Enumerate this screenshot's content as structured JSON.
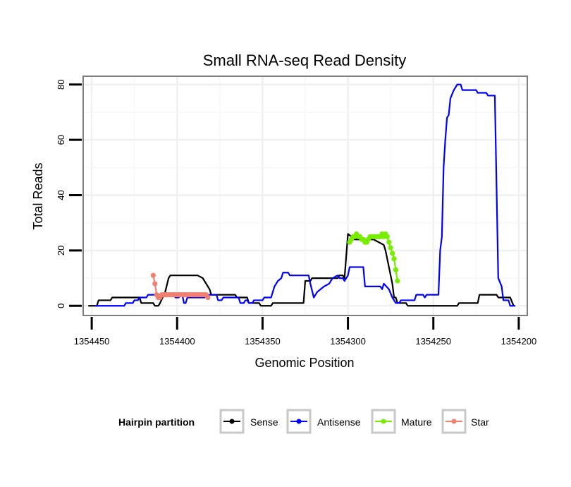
{
  "chart_data": {
    "type": "line",
    "title": "Small RNA-seq Read Density",
    "xlabel": "Genomic Position",
    "ylabel": "Total Reads",
    "xlim": [
      1354455,
      1354195
    ],
    "ylim": [
      -3.5,
      83
    ],
    "x_reversed": true,
    "x_ticks": [
      1354450,
      1354400,
      1354350,
      1354300,
      1354250,
      1354200
    ],
    "x_tick_labels": [
      "1354450",
      "1354400",
      "1354350",
      "1354300",
      "1354250",
      "1354200"
    ],
    "y_ticks": [
      0,
      20,
      40,
      60,
      80
    ],
    "y_tick_labels": [
      "0",
      "20",
      "40",
      "60",
      "80"
    ],
    "grid": true,
    "legend": {
      "title": "Hairpin partition",
      "position": "bottom",
      "entries": [
        "Sense",
        "Antisense",
        "Mature",
        "Star"
      ]
    },
    "series": [
      {
        "name": "Sense",
        "color": "#000000",
        "markers": false,
        "points": [
          [
            1354452,
            0
          ],
          [
            1354447,
            0
          ],
          [
            1354446,
            2
          ],
          [
            1354439,
            2
          ],
          [
            1354438,
            3
          ],
          [
            1354422,
            3
          ],
          [
            1354421,
            1
          ],
          [
            1354414,
            1
          ],
          [
            1354413,
            0
          ],
          [
            1354411,
            0
          ],
          [
            1354410,
            1
          ],
          [
            1354407,
            5
          ],
          [
            1354405,
            10
          ],
          [
            1354404,
            11
          ],
          [
            1354388,
            11
          ],
          [
            1354385,
            10
          ],
          [
            1354384,
            9
          ],
          [
            1354381,
            6
          ],
          [
            1354380,
            4
          ],
          [
            1354366,
            4
          ],
          [
            1354365,
            3
          ],
          [
            1354359,
            3
          ],
          [
            1354358,
            1
          ],
          [
            1354352,
            1
          ],
          [
            1354351,
            0
          ],
          [
            1354345,
            0
          ],
          [
            1354344,
            1
          ],
          [
            1354326,
            1
          ],
          [
            1354325,
            9
          ],
          [
            1354322,
            9
          ],
          [
            1354321,
            10
          ],
          [
            1354306,
            10
          ],
          [
            1354305,
            11
          ],
          [
            1354303,
            11
          ],
          [
            1354302,
            10
          ],
          [
            1354300,
            26
          ],
          [
            1354296,
            24
          ],
          [
            1354285,
            24
          ],
          [
            1354282,
            23
          ],
          [
            1354279,
            22
          ],
          [
            1354278,
            20
          ],
          [
            1354276,
            14
          ],
          [
            1354274,
            8
          ],
          [
            1354273,
            3
          ],
          [
            1354272,
            3
          ],
          [
            1354271,
            1
          ],
          [
            1354266,
            1
          ],
          [
            1354265,
            0
          ],
          [
            1354236,
            0
          ],
          [
            1354235,
            1
          ],
          [
            1354224,
            1
          ],
          [
            1354223,
            4
          ],
          [
            1354213,
            4
          ],
          [
            1354212,
            3
          ],
          [
            1354205,
            3
          ],
          [
            1354203,
            0
          ]
        ]
      },
      {
        "name": "Antisense",
        "color": "#0000ff",
        "markers": false,
        "points": [
          [
            1354448,
            0
          ],
          [
            1354431,
            0
          ],
          [
            1354430,
            1
          ],
          [
            1354426,
            1
          ],
          [
            1354425,
            2
          ],
          [
            1354423,
            2
          ],
          [
            1354422,
            3
          ],
          [
            1354418,
            3
          ],
          [
            1354417,
            4
          ],
          [
            1354402,
            4
          ],
          [
            1354401,
            3
          ],
          [
            1354399,
            3
          ],
          [
            1354398,
            4
          ],
          [
            1354397,
            4
          ],
          [
            1354396,
            1
          ],
          [
            1354395,
            1
          ],
          [
            1354394,
            3
          ],
          [
            1354384,
            3
          ],
          [
            1354383,
            4
          ],
          [
            1354377,
            4
          ],
          [
            1354376,
            2
          ],
          [
            1354374,
            2
          ],
          [
            1354373,
            3
          ],
          [
            1354364,
            3
          ],
          [
            1354363,
            1
          ],
          [
            1354361,
            1
          ],
          [
            1354360,
            2
          ],
          [
            1354359,
            2
          ],
          [
            1354358,
            1
          ],
          [
            1354356,
            1
          ],
          [
            1354355,
            2
          ],
          [
            1354350,
            2
          ],
          [
            1354349,
            3
          ],
          [
            1354345,
            3
          ],
          [
            1354343,
            7
          ],
          [
            1354341,
            9
          ],
          [
            1354339,
            10
          ],
          [
            1354338,
            12
          ],
          [
            1354335,
            12
          ],
          [
            1354334,
            11
          ],
          [
            1354323,
            11
          ],
          [
            1354322,
            8
          ],
          [
            1354320,
            3
          ],
          [
            1354318,
            5
          ],
          [
            1354316,
            6
          ],
          [
            1354314,
            7
          ],
          [
            1354311,
            8
          ],
          [
            1354309,
            10
          ],
          [
            1354306,
            11
          ],
          [
            1354305,
            10
          ],
          [
            1354303,
            10
          ],
          [
            1354302,
            9
          ],
          [
            1354300,
            11
          ],
          [
            1354299,
            14
          ],
          [
            1354291,
            14
          ],
          [
            1354290,
            7
          ],
          [
            1354281,
            7
          ],
          [
            1354280,
            6
          ],
          [
            1354279,
            8
          ],
          [
            1354276,
            6
          ],
          [
            1354274,
            3
          ],
          [
            1354272,
            1
          ],
          [
            1354270,
            1
          ],
          [
            1354269,
            2
          ],
          [
            1354261,
            2
          ],
          [
            1354260,
            4
          ],
          [
            1354256,
            4
          ],
          [
            1354255,
            3
          ],
          [
            1354254,
            4
          ],
          [
            1354247,
            4
          ],
          [
            1354246,
            20
          ],
          [
            1354245,
            25
          ],
          [
            1354244,
            50
          ],
          [
            1354243,
            60
          ],
          [
            1354242,
            68
          ],
          [
            1354241,
            69
          ],
          [
            1354240,
            75
          ],
          [
            1354238,
            78
          ],
          [
            1354236,
            80
          ],
          [
            1354234,
            80
          ],
          [
            1354233,
            78
          ],
          [
            1354225,
            78
          ],
          [
            1354224,
            77
          ],
          [
            1354219,
            77
          ],
          [
            1354218,
            76
          ],
          [
            1354214,
            76
          ],
          [
            1354212,
            10
          ],
          [
            1354210,
            7
          ],
          [
            1354209,
            2
          ],
          [
            1354206,
            2
          ],
          [
            1354205,
            0
          ],
          [
            1354202,
            0
          ]
        ]
      },
      {
        "name": "Mature",
        "color": "#77ee00",
        "markers": true,
        "points": [
          [
            1354299,
            23
          ],
          [
            1354298,
            24
          ],
          [
            1354297,
            25
          ],
          [
            1354296,
            25
          ],
          [
            1354295,
            26
          ],
          [
            1354294,
            25
          ],
          [
            1354293,
            25
          ],
          [
            1354292,
            24
          ],
          [
            1354291,
            24
          ],
          [
            1354290,
            23
          ],
          [
            1354289,
            23
          ],
          [
            1354288,
            24
          ],
          [
            1354287,
            25
          ],
          [
            1354286,
            25
          ],
          [
            1354285,
            25
          ],
          [
            1354284,
            25
          ],
          [
            1354283,
            25
          ],
          [
            1354282,
            25
          ],
          [
            1354281,
            25
          ],
          [
            1354280,
            26
          ],
          [
            1354279,
            25
          ],
          [
            1354278,
            26
          ],
          [
            1354277,
            25
          ],
          [
            1354276,
            23
          ],
          [
            1354275,
            21
          ],
          [
            1354274,
            19
          ],
          [
            1354273,
            17
          ],
          [
            1354272,
            13
          ],
          [
            1354271,
            9
          ]
        ]
      },
      {
        "name": "Star",
        "color": "#f08070",
        "markers": true,
        "points": [
          [
            1354414,
            11
          ],
          [
            1354413,
            8
          ],
          [
            1354412,
            4
          ],
          [
            1354411,
            3
          ],
          [
            1354410,
            3
          ],
          [
            1354409,
            4
          ],
          [
            1354408,
            4
          ],
          [
            1354407,
            4
          ],
          [
            1354406,
            4
          ],
          [
            1354405,
            4
          ],
          [
            1354404,
            4
          ],
          [
            1354403,
            4
          ],
          [
            1354402,
            4
          ],
          [
            1354401,
            4
          ],
          [
            1354400,
            4
          ],
          [
            1354399,
            4
          ],
          [
            1354398,
            4
          ],
          [
            1354397,
            4
          ],
          [
            1354396,
            4
          ],
          [
            1354395,
            4
          ],
          [
            1354394,
            4
          ],
          [
            1354393,
            4
          ],
          [
            1354392,
            4
          ],
          [
            1354391,
            4
          ],
          [
            1354390,
            4
          ],
          [
            1354389,
            4
          ],
          [
            1354388,
            4
          ],
          [
            1354387,
            4
          ],
          [
            1354386,
            4
          ],
          [
            1354385,
            4
          ],
          [
            1354384,
            4
          ],
          [
            1354383,
            4
          ],
          [
            1354382,
            3
          ]
        ]
      }
    ]
  }
}
